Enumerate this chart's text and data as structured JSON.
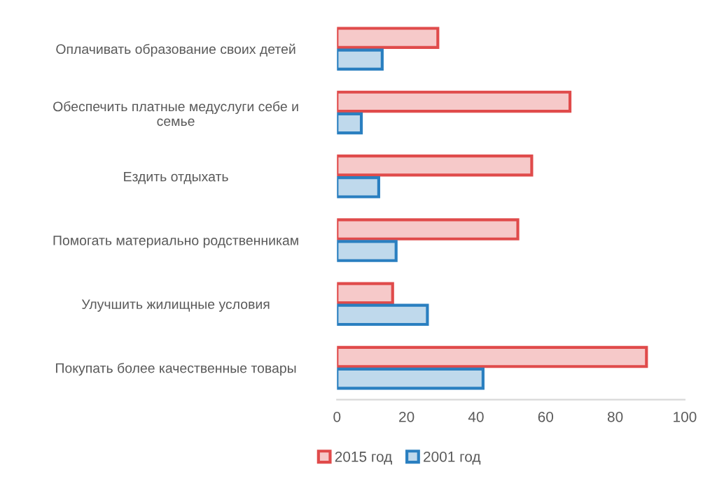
{
  "chart_data": {
    "type": "bar",
    "orientation": "horizontal",
    "categories": [
      "Оплачивать образование своих детей",
      "Обеспечить платные медуслуги себе и\nсемье",
      "Ездить отдыхать",
      "Помогать материально родственникам",
      "Улучшить жилищные условия",
      "Покупать более качественные товары"
    ],
    "series": [
      {
        "name": "2015 год",
        "color": "#e04b4b",
        "values": [
          29,
          67,
          56,
          52,
          16,
          89
        ]
      },
      {
        "name": "2001 год",
        "color": "#2a7fc0",
        "values": [
          13,
          7,
          12,
          17,
          26,
          42
        ]
      }
    ],
    "xlim": [
      0,
      100
    ],
    "xticks": [
      0,
      20,
      40,
      60,
      80,
      100
    ],
    "grid": false,
    "legend": "bottom"
  }
}
